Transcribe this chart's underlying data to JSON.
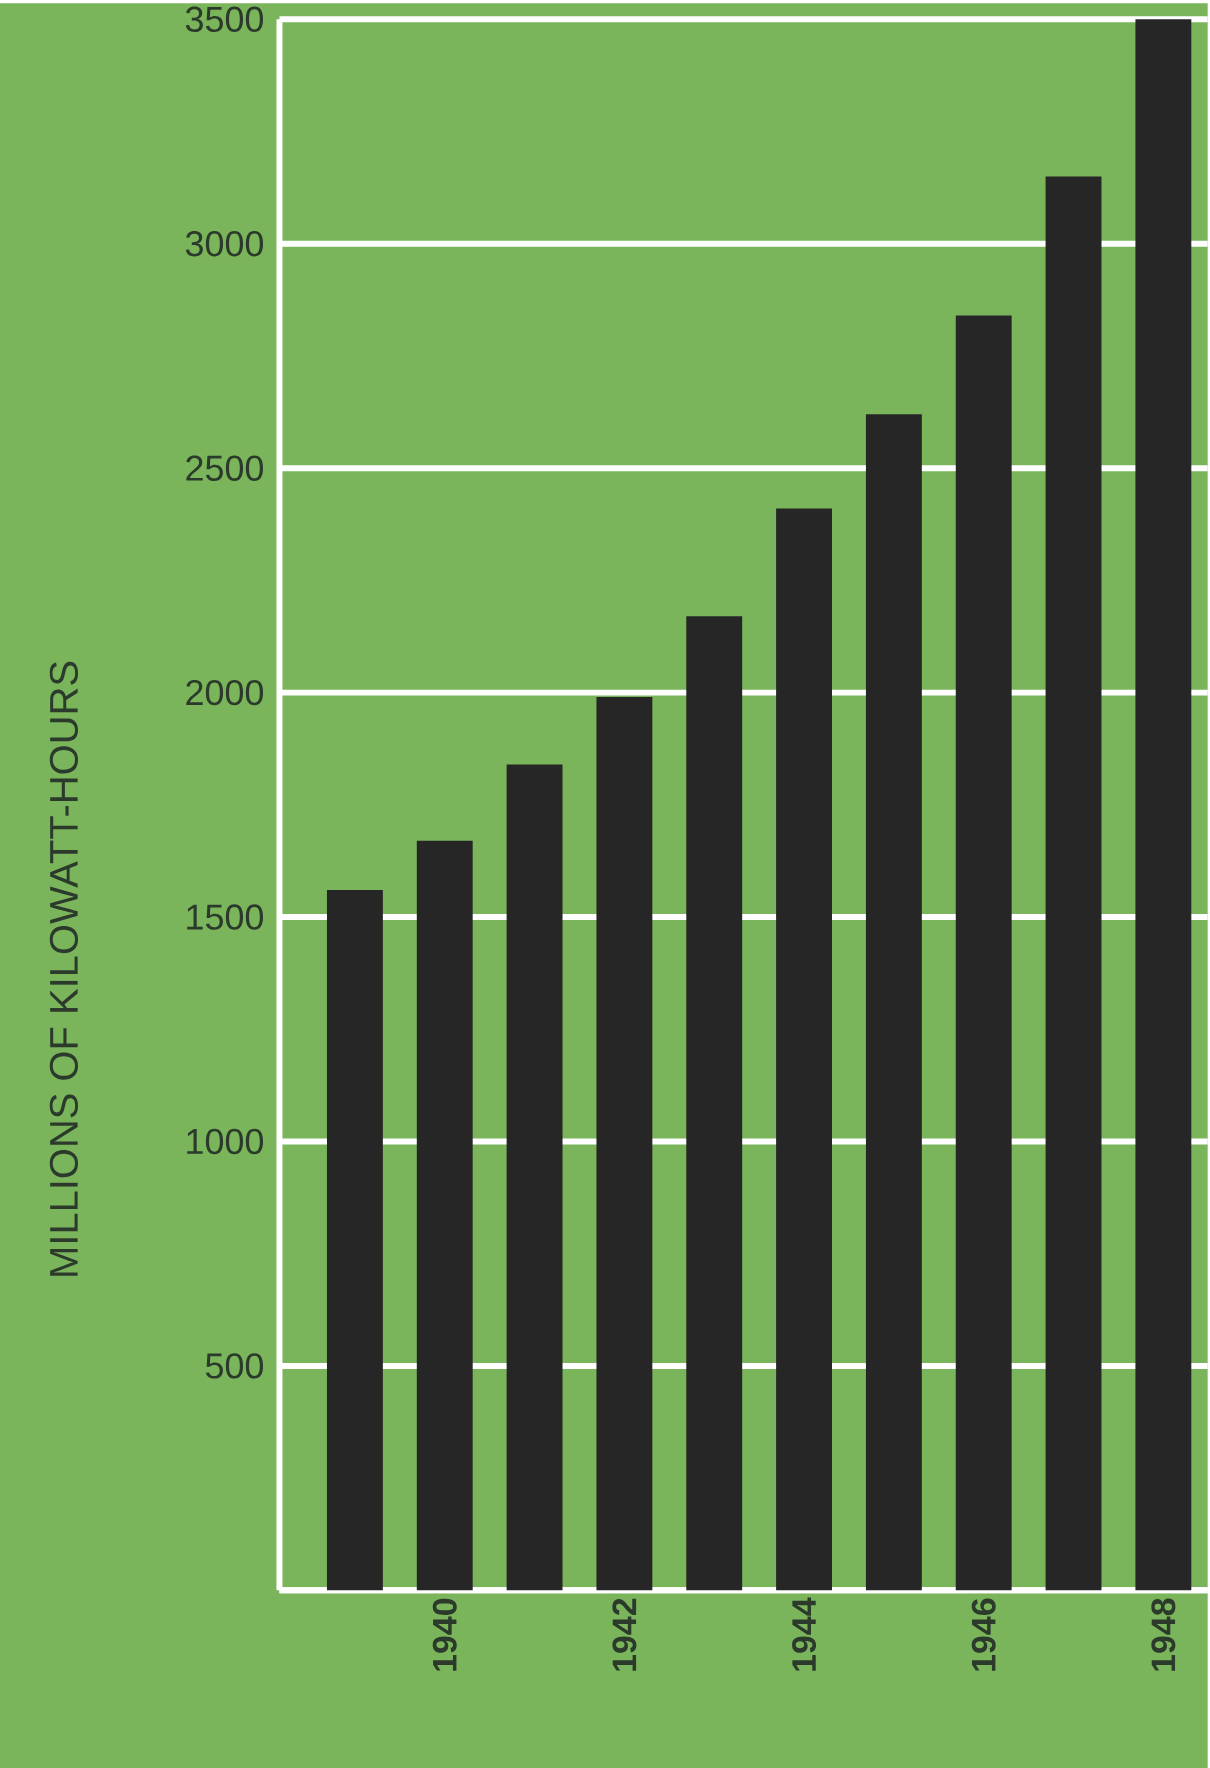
{
  "chart_data": {
    "type": "bar",
    "ylabel": "MILLIONS OF KILOWATT-HOURS",
    "categories": [
      null,
      "1940",
      null,
      "1942",
      null,
      "1944",
      null,
      "1946",
      null,
      "1948"
    ],
    "values": [
      1560,
      1670,
      1840,
      1990,
      2170,
      2410,
      2620,
      2840,
      3150,
      3500
    ],
    "color": "#262626",
    "ylim": [
      0,
      3500
    ],
    "yticks": [
      {
        "value": 0,
        "label": null
      },
      500,
      1000,
      1500,
      2000,
      2500,
      3000,
      3500
    ],
    "grid": "y"
  }
}
